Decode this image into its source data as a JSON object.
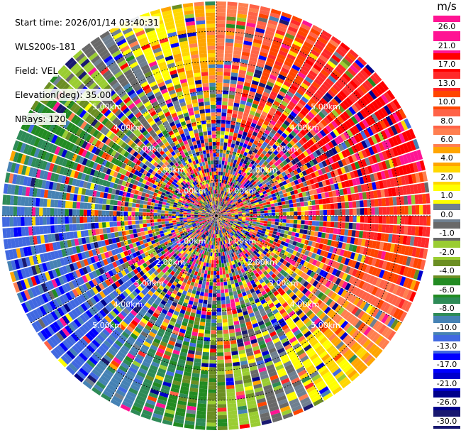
{
  "header": {
    "start_time": "Start time: 2026/01/14 03:40:31",
    "device": "WLS200s-181",
    "field": "Field: VEL",
    "elevation": "Elevation(deg): 35.00",
    "nrays": "NRays: 120"
  },
  "chart_data": {
    "type": "heatmap",
    "projection": "polar-ppi",
    "n_rays": 120,
    "field": "VEL",
    "unit": "m/s",
    "range_rings_km": [
      "1.00km",
      "2.00km",
      "3.00km",
      "4.00km",
      "5.00km"
    ],
    "max_range_km": 5.7,
    "grid": true,
    "colorbar": {
      "title": "m/s",
      "placement": "right",
      "ticks": [
        "26.0",
        "21.0",
        "17.0",
        "13.0",
        "10.0",
        "8.0",
        "6.0",
        "4.0",
        "2.0",
        "1.0",
        "0.0",
        "-1.0",
        "-2.0",
        "-4.0",
        "-6.0",
        "-8.0",
        "-10.0",
        "-13.0",
        "-17.0",
        "-21.0",
        "-26.0",
        "-30.0"
      ],
      "colors": [
        "#ff1493",
        "#ff1493",
        "#ff0000",
        "#ff2a2a",
        "#ff4500",
        "#ff6347",
        "#ff7f50",
        "#ffa500",
        "#ffd700",
        "#ffff00",
        "#708090",
        "#696969",
        "#9acd32",
        "#6b8e23",
        "#228b22",
        "#2e8b57",
        "#4682b4",
        "#4169e1",
        "#0000ff",
        "#0000cd",
        "#00008b",
        "#191970"
      ]
    }
  }
}
